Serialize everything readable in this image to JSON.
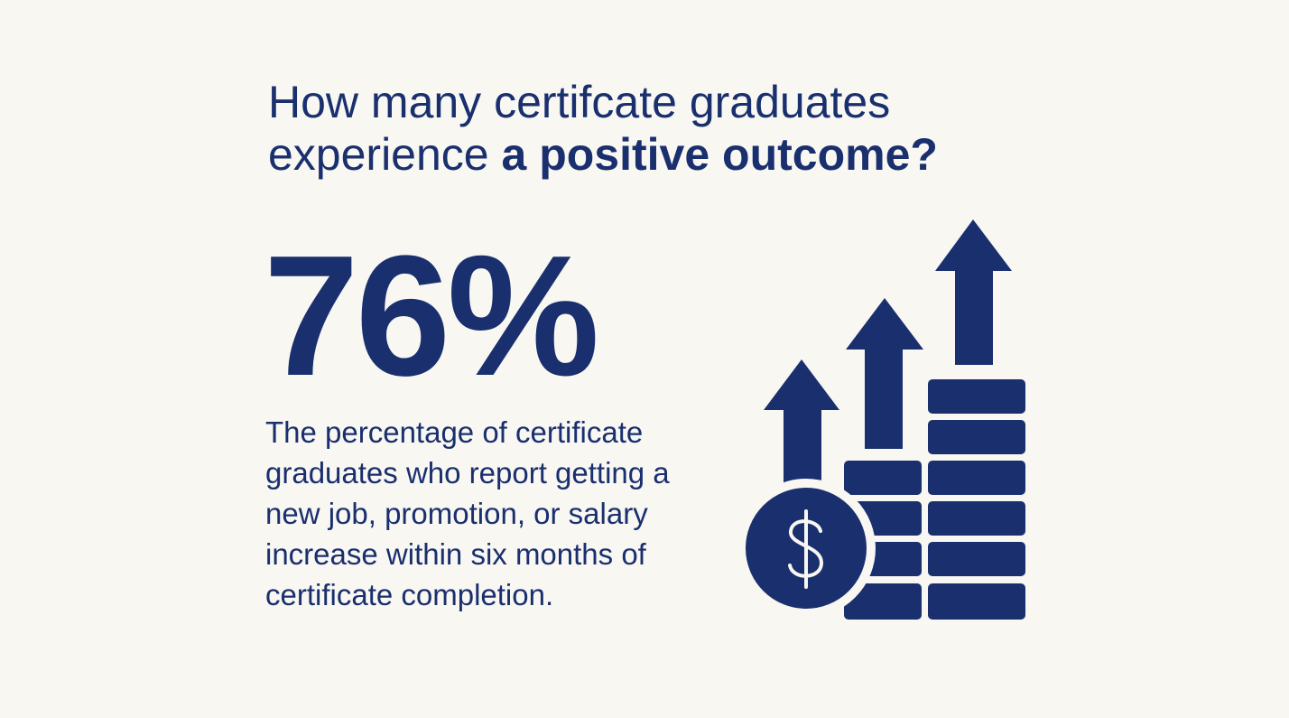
{
  "title": {
    "line1": "How many certifcate graduates",
    "line2_plain": "experience",
    "line2_bold": "a positive outcome?"
  },
  "stat": "76%",
  "description_lines": [
    "The percentage of certificate",
    "graduates who report getting a",
    "new job, promotion, or salary",
    "increase within six months of",
    "certificate completion."
  ]
}
